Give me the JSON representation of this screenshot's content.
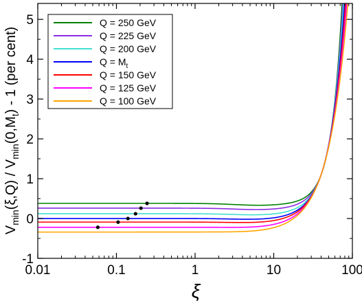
{
  "chart_data": {
    "type": "line",
    "xscale": "log",
    "xlim": [
      0.01,
      100
    ],
    "ylim": [
      -1,
      5.4
    ],
    "xlabel": "ξ",
    "ylabel": {
      "parts": [
        {
          "t": "V",
          "s": "normal"
        },
        {
          "t": "min",
          "s": "sub"
        },
        {
          "t": "(ξ,Q) / V",
          "s": "normal"
        },
        {
          "t": "min",
          "s": "sub"
        },
        {
          "t": "(0,M",
          "s": "normal"
        },
        {
          "t": "t",
          "s": "sub"
        },
        {
          "t": ") - 1",
          "s": "normal"
        },
        {
          "t": "   (per cent)",
          "s": "normal"
        }
      ]
    },
    "x_ticks": [
      {
        "v": 0.01,
        "label": "0.01"
      },
      {
        "v": 0.1,
        "label": "0.1"
      },
      {
        "v": 1,
        "label": "1"
      },
      {
        "v": 10,
        "label": "10"
      },
      {
        "v": 100,
        "label": "100"
      }
    ],
    "y_ticks": [
      {
        "v": -1,
        "label": "-1"
      },
      {
        "v": 0,
        "label": "0"
      },
      {
        "v": 1,
        "label": "1"
      },
      {
        "v": 2,
        "label": "2"
      },
      {
        "v": 3,
        "label": "3"
      },
      {
        "v": 4,
        "label": "4"
      },
      {
        "v": 5,
        "label": "5"
      }
    ],
    "grid": false,
    "legend_position": "top-left",
    "series": [
      {
        "name": "Q = 250 GeV",
        "color": "#008000",
        "plateau": 0.38,
        "dip": 0.05,
        "xm": 0.245,
        "ym": 0.38
      },
      {
        "name": "Q = 225 GeV",
        "color": "#8a2be2",
        "plateau": 0.26,
        "dip": 0.04,
        "xm": 0.205,
        "ym": 0.26
      },
      {
        "name": "Q = 200 GeV",
        "color": "#40e0d0",
        "plateau": 0.12,
        "dip": 0.035,
        "xm": 0.175,
        "ym": 0.12
      },
      {
        "name": "Q = M",
        "name_sub": "t",
        "color": "#0000ff",
        "plateau": 0.0,
        "dip": 0.03,
        "xm": 0.14,
        "ym": 0.0
      },
      {
        "name": "Q = 150 GeV",
        "color": "#ff0000",
        "plateau": -0.09,
        "dip": 0.025,
        "xm": 0.105,
        "ym": -0.09
      },
      {
        "name": "Q = 125 GeV",
        "color": "#ff00ff",
        "plateau": -0.22,
        "dip": 0.02,
        "xm": 0.058,
        "ym": -0.22
      },
      {
        "name": "Q = 100 GeV",
        "color": "#ffa500",
        "plateau": -0.34,
        "dip": 0.015
      }
    ],
    "crossing": {
      "x": 40,
      "y": 1.1
    },
    "curve_growth": {
      "x_at_5": [
        72,
        73.5,
        75,
        77,
        79,
        81.5,
        84
      ]
    }
  }
}
